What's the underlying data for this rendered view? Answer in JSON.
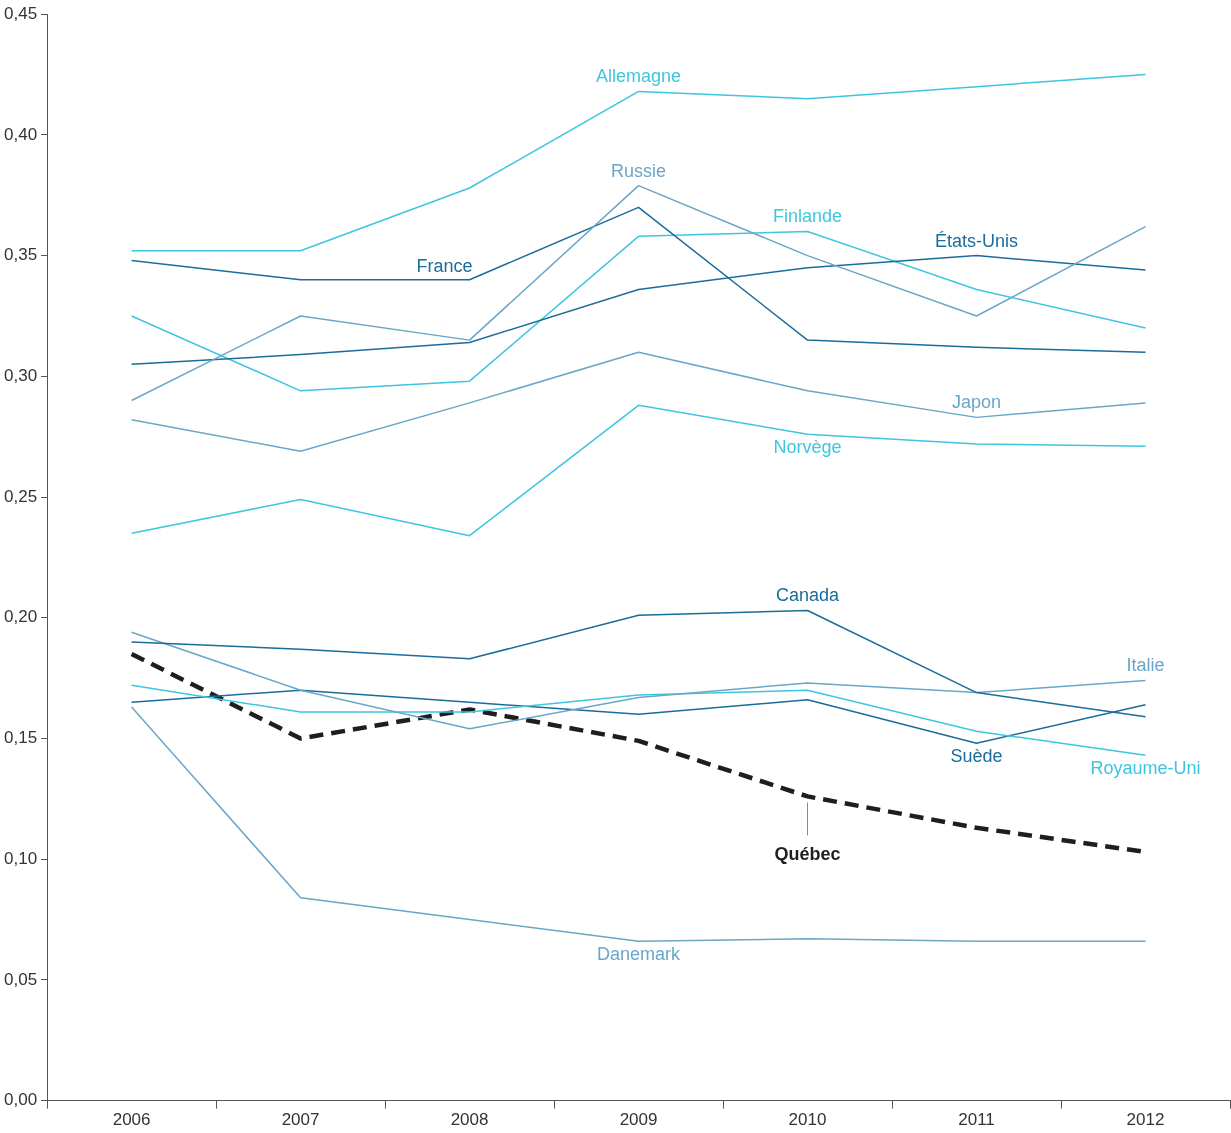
{
  "chart_data": {
    "type": "line",
    "categories": [
      "2006",
      "2007",
      "2008",
      "2009",
      "2010",
      "2011",
      "2012"
    ],
    "ylim": [
      0,
      0.45
    ],
    "yticks": [
      {
        "value": 0,
        "label": "0,00"
      },
      {
        "value": 0.05,
        "label": "0,05"
      },
      {
        "value": 0.1,
        "label": "0,10"
      },
      {
        "value": 0.15,
        "label": "0,15"
      },
      {
        "value": 0.2,
        "label": "0,20"
      },
      {
        "value": 0.25,
        "label": "0,25"
      },
      {
        "value": 0.3,
        "label": "0,30"
      },
      {
        "value": 0.35,
        "label": "0,35"
      },
      {
        "value": 0.4,
        "label": "0,40"
      },
      {
        "value": 0.45,
        "label": "0,45"
      }
    ],
    "grid": false,
    "legend": false,
    "marker": "none",
    "series": [
      {
        "name": "Allemagne",
        "color": "#3ec6e0",
        "values": [
          0.352,
          0.352,
          0.378,
          0.418,
          0.415,
          0.42,
          0.425
        ]
      },
      {
        "name": "Russie",
        "color": "#6aa6c8",
        "values": [
          0.29,
          0.325,
          0.315,
          0.379,
          0.35,
          0.325,
          0.362
        ]
      },
      {
        "name": "France",
        "color": "#1a6c9a",
        "values": [
          0.348,
          0.34,
          0.34,
          0.37,
          0.315,
          0.312,
          0.31
        ]
      },
      {
        "name": "États-Unis",
        "color": "#1a6c9a",
        "values": [
          0.305,
          0.309,
          0.314,
          0.336,
          0.345,
          0.35,
          0.344
        ]
      },
      {
        "name": "Finlande",
        "color": "#3ec6e0",
        "values": [
          0.325,
          0.294,
          0.298,
          0.358,
          0.36,
          0.336,
          0.32
        ]
      },
      {
        "name": "Japon",
        "color": "#6aa6c8",
        "values": [
          0.282,
          0.269,
          0.289,
          0.31,
          0.294,
          0.283,
          0.289
        ]
      },
      {
        "name": "Norvège",
        "color": "#3ec6e0",
        "values": [
          0.235,
          0.249,
          0.234,
          0.288,
          0.276,
          0.272,
          0.271
        ]
      },
      {
        "name": "Canada",
        "color": "#1a6c9a",
        "values": [
          0.19,
          0.187,
          0.183,
          0.201,
          0.203,
          0.169,
          0.159
        ]
      },
      {
        "name": "Italie",
        "color": "#6aa6c8",
        "values": [
          0.194,
          0.17,
          0.154,
          0.167,
          0.173,
          0.169,
          0.174
        ]
      },
      {
        "name": "Royaume-Uni",
        "color": "#3ec6e0",
        "values": [
          0.172,
          0.161,
          0.161,
          0.168,
          0.17,
          0.153,
          0.143
        ]
      },
      {
        "name": "Suède",
        "color": "#1a6c9a",
        "values": [
          0.165,
          0.17,
          0.165,
          0.16,
          0.166,
          0.148,
          0.164
        ]
      },
      {
        "name": "Danemark",
        "color": "#6aa6c8",
        "values": [
          0.163,
          0.084,
          0.075,
          0.066,
          0.067,
          0.066,
          0.066
        ]
      },
      {
        "name": "Québec",
        "color": "#1e1e1e",
        "line_style": "dashed",
        "values": [
          0.185,
          0.15,
          0.162,
          0.149,
          0.126,
          0.113,
          0.103
        ]
      }
    ]
  }
}
